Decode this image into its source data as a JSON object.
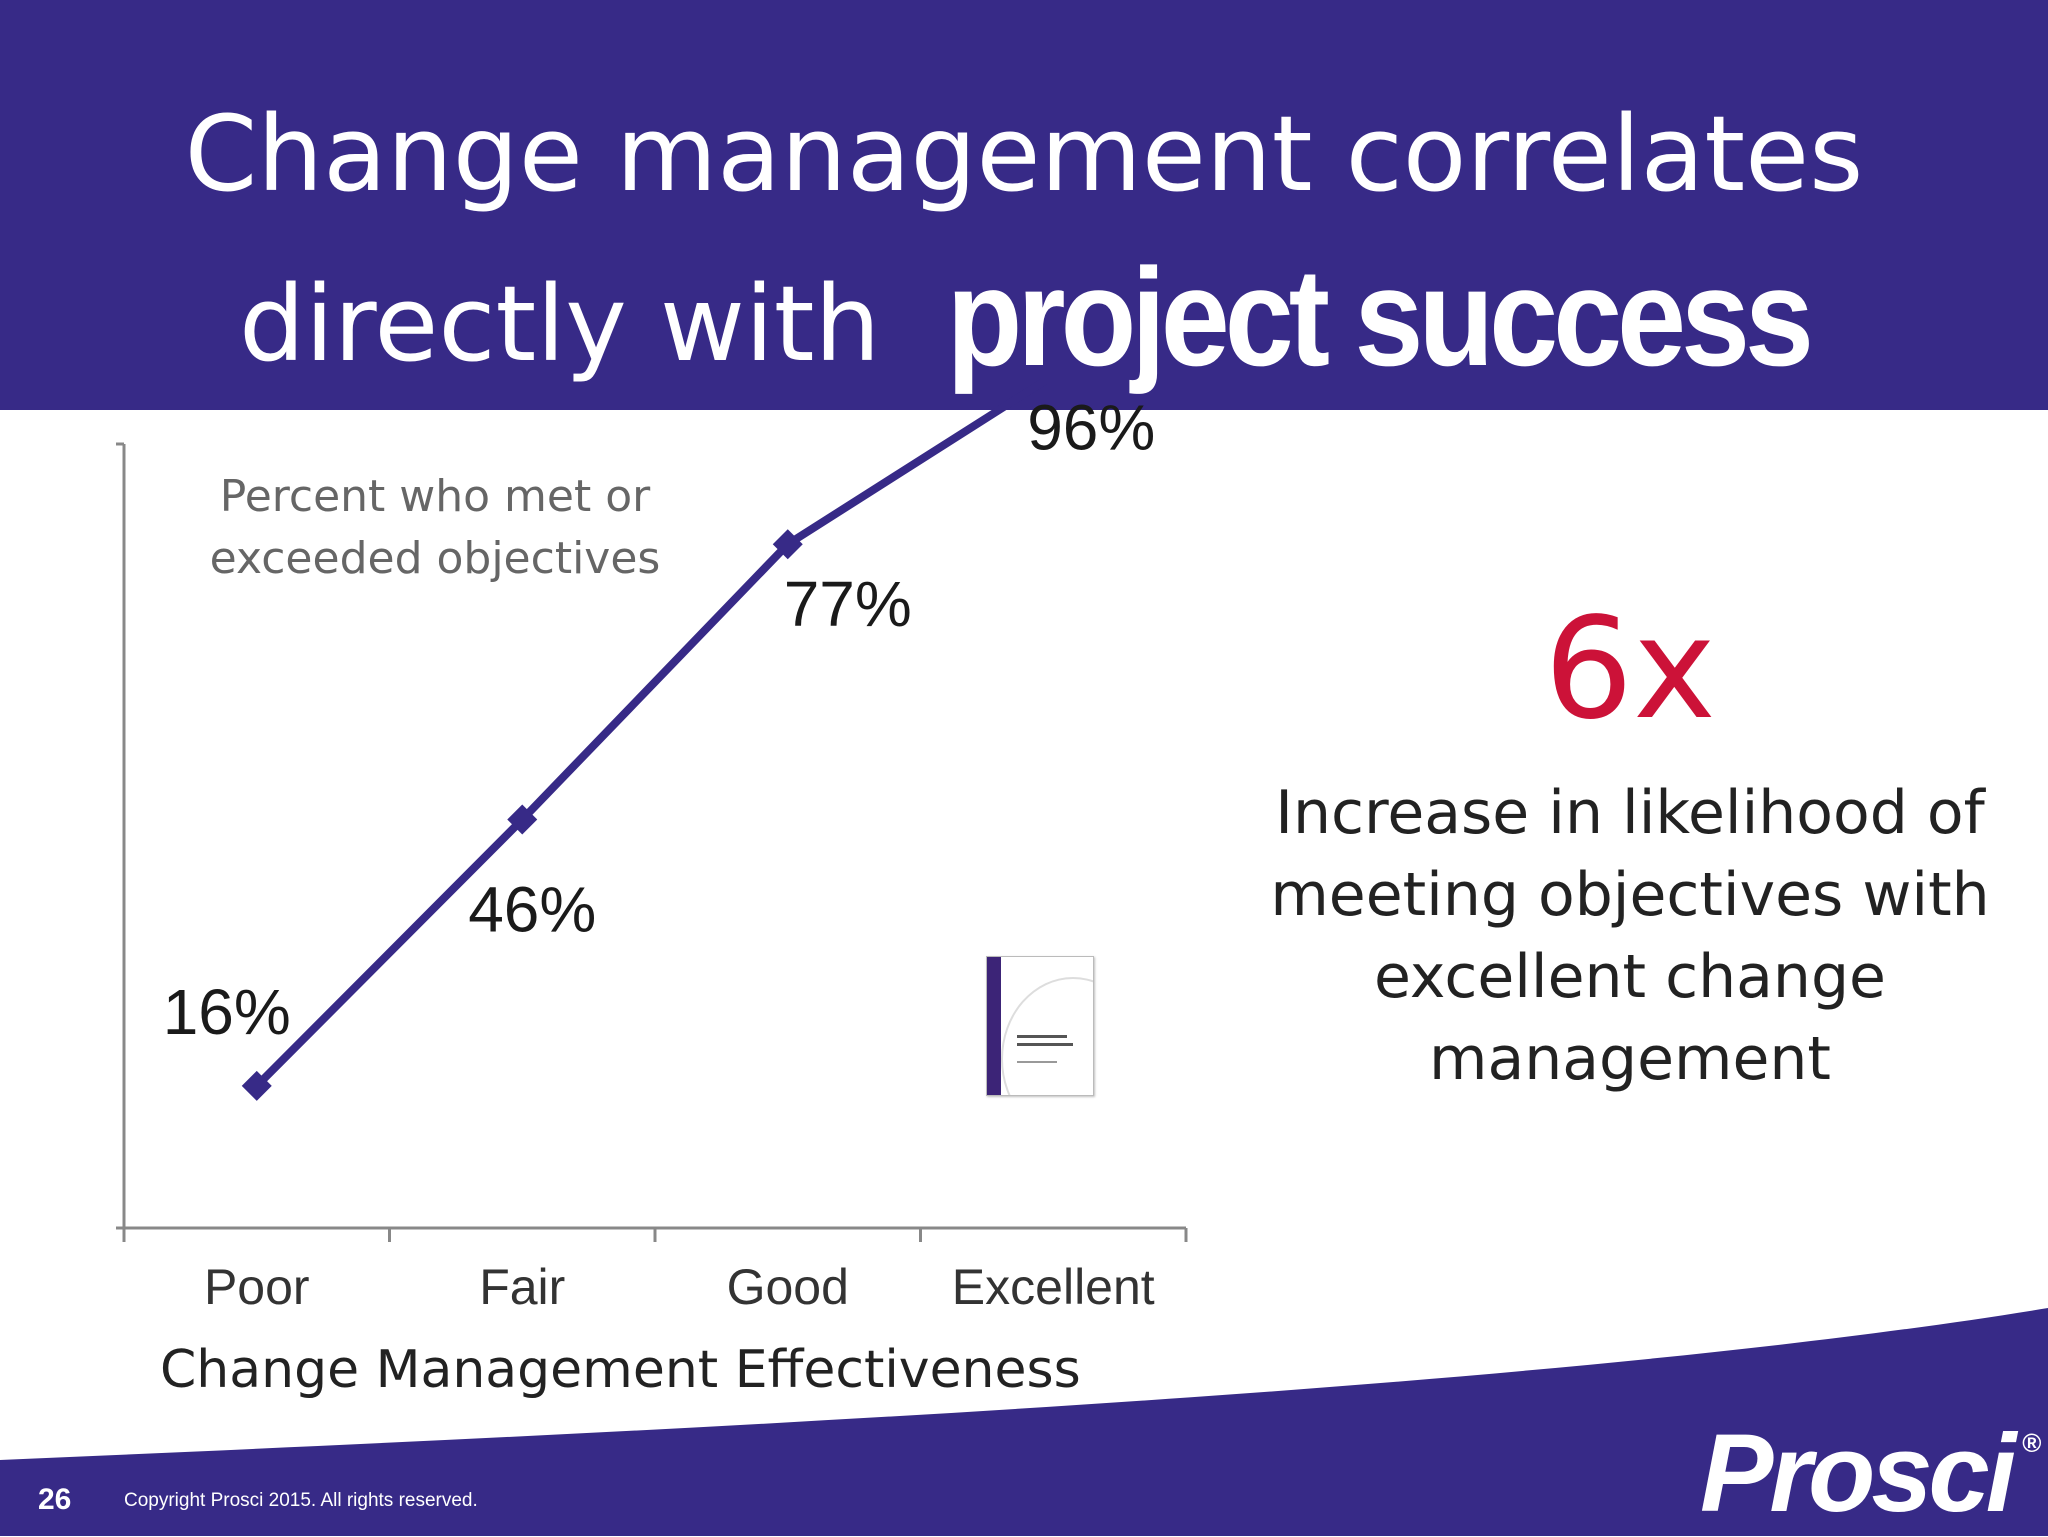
{
  "slide": {
    "title_line1": "Change management correlates",
    "title_line2_plain": "directly with",
    "title_line2_emph": "project success",
    "page_number": "26",
    "copyright": "Copyright Prosci 2015. All rights reserved.",
    "logo_text": "Prosci",
    "logo_mark": "®"
  },
  "callout": {
    "number": "6x",
    "text": "Increase in likelihood of meeting objectives with excellent change management",
    "color": "#cc1238"
  },
  "colors": {
    "brand": "#372a87",
    "series": "#372a87",
    "axis": "#888888"
  },
  "chart_data": {
    "type": "line",
    "title": "Percent who met or exceeded objectives",
    "xlabel": "Change Management Effectiveness",
    "ylabel": "",
    "categories": [
      "Poor",
      "Fair",
      "Good",
      "Excellent"
    ],
    "series": [
      {
        "values": [
          16,
          46,
          77,
          96
        ],
        "labels": [
          "16%",
          "46%",
          "77%",
          "96%"
        ],
        "marker": "diamond"
      }
    ],
    "ylim": [
      0,
      100
    ],
    "grid": false,
    "legend": "none"
  },
  "thumbnail": {
    "icon": "report-cover-icon"
  }
}
